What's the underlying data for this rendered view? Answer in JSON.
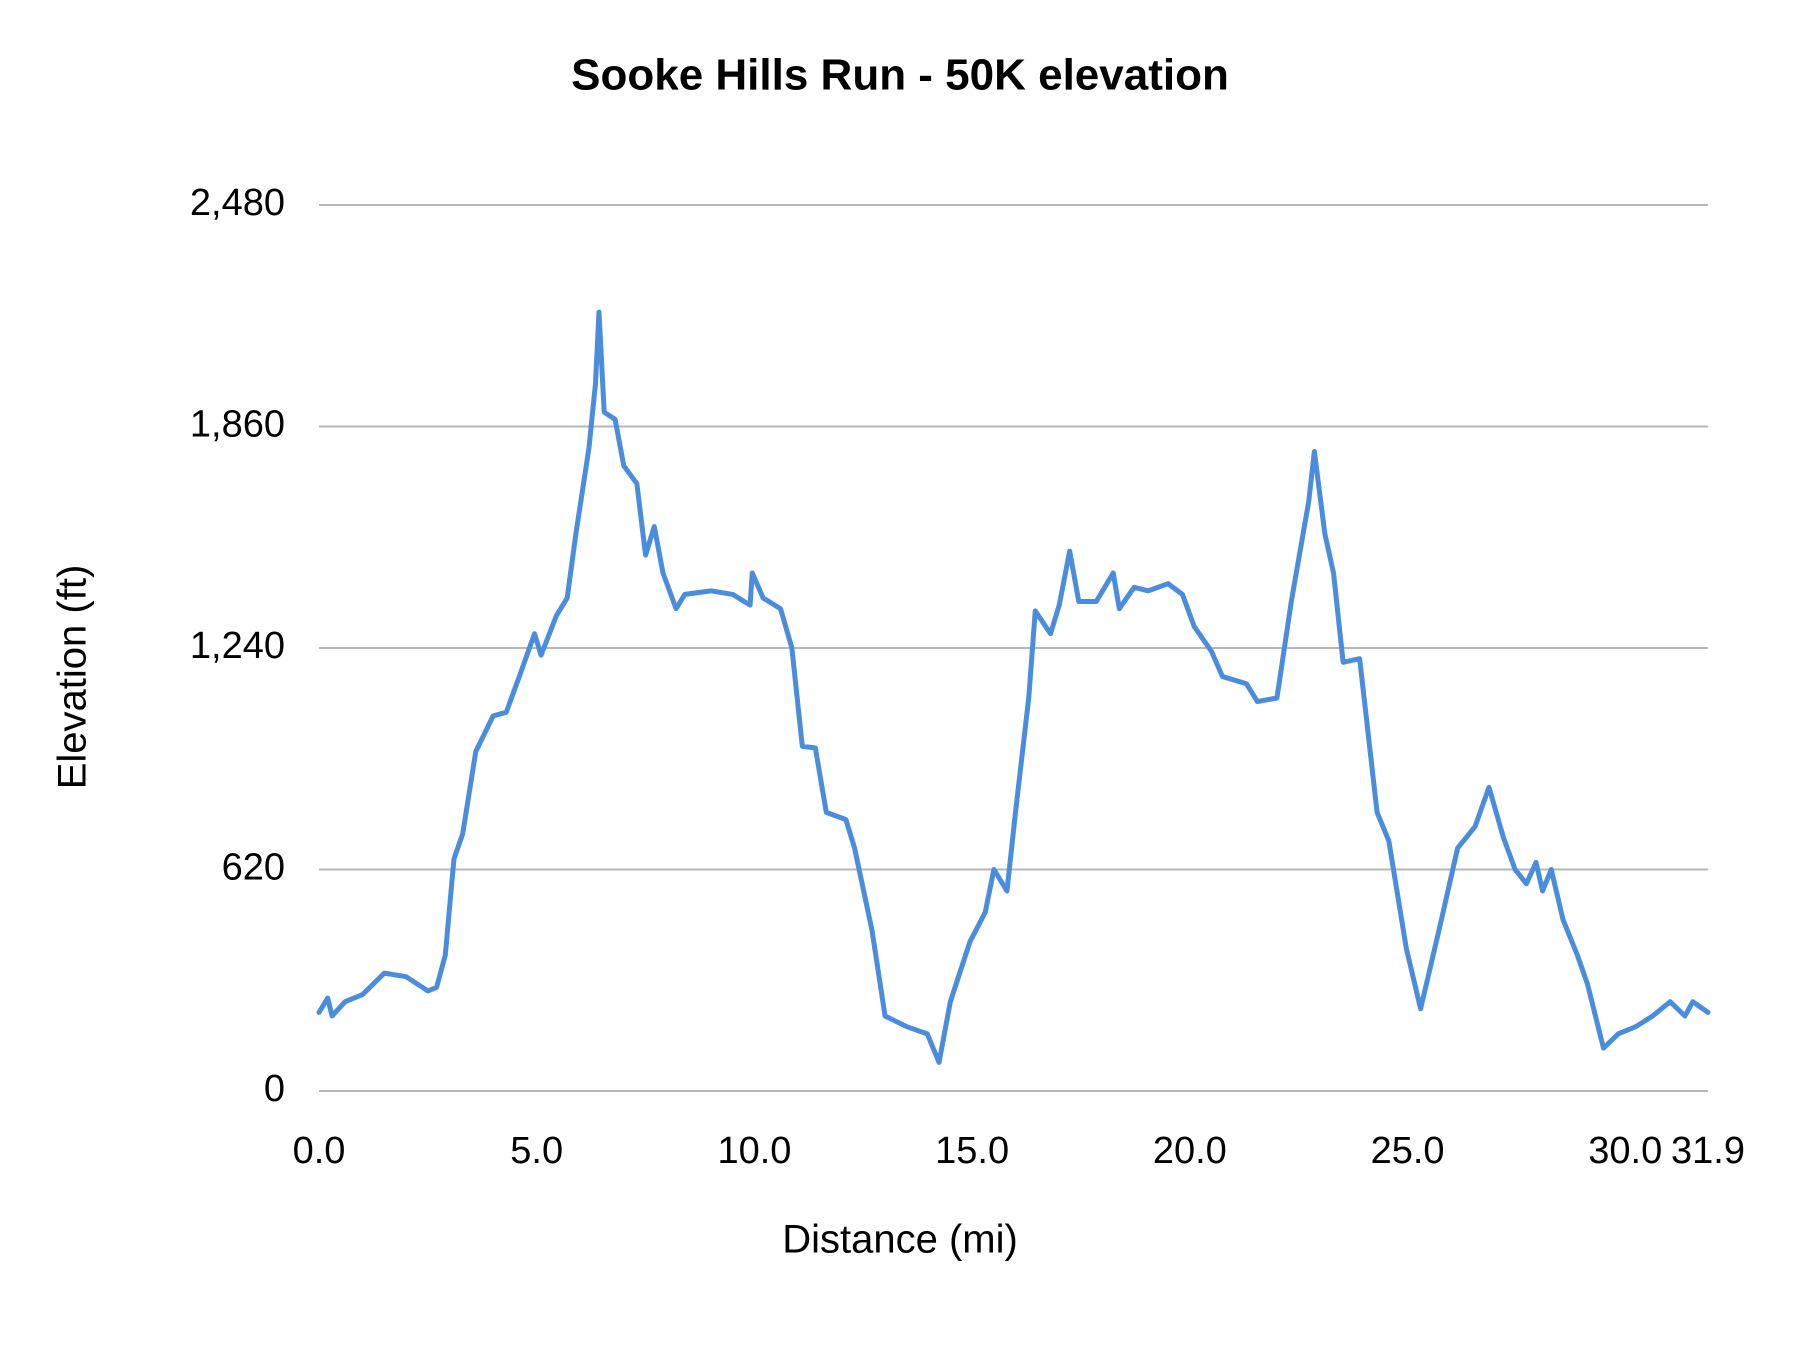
{
  "chart_data": {
    "type": "line",
    "title": "Sooke Hills Run - 50K elevation",
    "x_label": "Distance (mi)",
    "y_label": "Elevation (ft)",
    "xlim": [
      0,
      31.9
    ],
    "ylim": [
      0,
      2480
    ],
    "xticks": [
      {
        "value": 0,
        "label": "0.0"
      },
      {
        "value": 5,
        "label": "5.0"
      },
      {
        "value": 10,
        "label": "10.0"
      },
      {
        "value": 15,
        "label": "15.0"
      },
      {
        "value": 20,
        "label": "20.0"
      },
      {
        "value": 25,
        "label": "25.0"
      },
      {
        "value": 30,
        "label": "30.0"
      },
      31.9
    ],
    "yticks": [
      0,
      {
        "value": 620,
        "label": "620"
      },
      {
        "value": 1240,
        "label": "1,240"
      },
      {
        "value": 1860,
        "label": "1,860"
      },
      {
        "value": 2480,
        "label": "2,480"
      }
    ],
    "grid": true,
    "series": [
      {
        "color": "#4a8ddc",
        "x": [
          0,
          0.2,
          0.3,
          0.6,
          1.0,
          1.5,
          2.0,
          2.5,
          2.7,
          2.9,
          3.1,
          3.3,
          3.6,
          4.0,
          4.3,
          4.6,
          4.95,
          5.1,
          5.45,
          5.7,
          5.9,
          6.2,
          6.35,
          6.43,
          6.55,
          6.8,
          7.0,
          7.3,
          7.5,
          7.7,
          7.9,
          8.2,
          8.4,
          9.0,
          9.5,
          9.9,
          9.95,
          10.2,
          10.6,
          10.86,
          11.1,
          11.4,
          11.65,
          12.1,
          12.3,
          12.7,
          13.0,
          13.5,
          13.97,
          14.24,
          14.5,
          14.95,
          15.3,
          15.5,
          15.8,
          16.0,
          16.3,
          16.45,
          16.8,
          17.0,
          17.24,
          17.45,
          17.85,
          18.24,
          18.38,
          18.72,
          19.04,
          19.5,
          19.83,
          20.1,
          20.5,
          20.75,
          21.3,
          21.55,
          22.0,
          22.33,
          22.73,
          22.86,
          23.1,
          23.3,
          23.52,
          23.9,
          24.3,
          24.57,
          24.97,
          25.3,
          25.76,
          26.15,
          26.55,
          26.87,
          27.2,
          27.47,
          27.73,
          27.95,
          28.1,
          28.3,
          28.57,
          28.9,
          29.13,
          29.5,
          29.84,
          30.24,
          30.63,
          31.03,
          31.37,
          31.55,
          31.9
        ],
        "values": [
          220,
          260,
          210,
          250,
          270,
          330,
          320,
          280,
          290,
          380,
          650,
          720,
          950,
          1050,
          1060,
          1160,
          1280,
          1220,
          1330,
          1380,
          1560,
          1800,
          1980,
          2180,
          1900,
          1880,
          1750,
          1700,
          1500,
          1580,
          1450,
          1350,
          1390,
          1400,
          1390,
          1360,
          1450,
          1380,
          1350,
          1240,
          965,
          960,
          780,
          760,
          680,
          450,
          210,
          180,
          160,
          80,
          250,
          418,
          500,
          620,
          560,
          785,
          1100,
          1344,
          1280,
          1360,
          1511,
          1370,
          1370,
          1450,
          1350,
          1410,
          1400,
          1420,
          1390,
          1300,
          1230,
          1160,
          1140,
          1090,
          1100,
          1370,
          1650,
          1790,
          1560,
          1450,
          1200,
          1210,
          780,
          700,
          400,
          230,
          470,
          680,
          740,
          850,
          710,
          620,
          580,
          640,
          560,
          620,
          480,
          380,
          300,
          120,
          160,
          180,
          210,
          250,
          210,
          250,
          220
        ]
      }
    ]
  }
}
